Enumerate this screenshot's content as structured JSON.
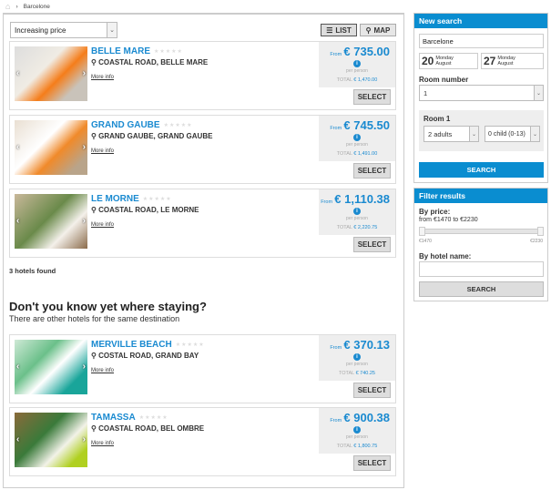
{
  "breadcrumb": {
    "home_icon": "home-icon",
    "current": "Barcelone"
  },
  "sort": {
    "value": "Increasing price"
  },
  "view": {
    "list": "LIST",
    "map": "MAP"
  },
  "hotels": [
    {
      "name": "BELLE MARE",
      "address": "COASTAL ROAD, BELLE MARE",
      "more": "More info",
      "from": "From",
      "price": "€ 735.00",
      "per": "per person",
      "total_label": "TOTAL",
      "total": "€ 1,470.00",
      "select": "SELECT"
    },
    {
      "name": "GRAND GAUBE",
      "address": "GRAND GAUBE, GRAND GAUBE",
      "more": "More info",
      "from": "From",
      "price": "€ 745.50",
      "per": "per person",
      "total_label": "TOTAL",
      "total": "€ 1,491.00",
      "select": "SELECT"
    },
    {
      "name": "LE MORNE",
      "address": "COASTAL ROAD, LE MORNE",
      "more": "More info",
      "from": "From",
      "price": "€ 1,110.38",
      "per": "per person",
      "total_label": "TOTAL",
      "total": "€ 2,220.75",
      "select": "SELECT"
    },
    {
      "name": "MERVILLE BEACH",
      "address": "COSTAL ROAD, GRAND BAY",
      "more": "More info",
      "from": "From",
      "price": "€ 370.13",
      "per": "per person",
      "total_label": "TOTAL",
      "total": "€ 740.25",
      "select": "SELECT"
    },
    {
      "name": "TAMASSA",
      "address": "COASTAL ROAD, BEL OMBRE",
      "more": "More info",
      "from": "From",
      "price": "€ 900.38",
      "per": "per person",
      "total_label": "TOTAL",
      "total": "€ 1,800.75",
      "select": "SELECT"
    }
  ],
  "found": "3 hotels found",
  "other": {
    "title": "Don't you know yet where staying?",
    "subtitle": "There are other hotels for the same destination"
  },
  "search": {
    "title": "New search",
    "destination": "Barcelone",
    "checkin": {
      "day": "20",
      "weekday": "Monday",
      "month": "August"
    },
    "checkout": {
      "day": "27",
      "weekday": "Monday",
      "month": "August"
    },
    "room_number_label": "Room number",
    "room_number": "1",
    "room_label": "Room 1",
    "adults": "2 adults",
    "children": "0 child (0-13)",
    "button": "SEARCH"
  },
  "filter": {
    "title": "Filter results",
    "price_label": "By price:",
    "price_range": "from €1470 to €2230",
    "min": "€1470",
    "max": "€2230",
    "name_label": "By hotel name:",
    "name_value": "",
    "button": "SEARCH"
  },
  "colors": {
    "accent": "#0a8dd0"
  }
}
